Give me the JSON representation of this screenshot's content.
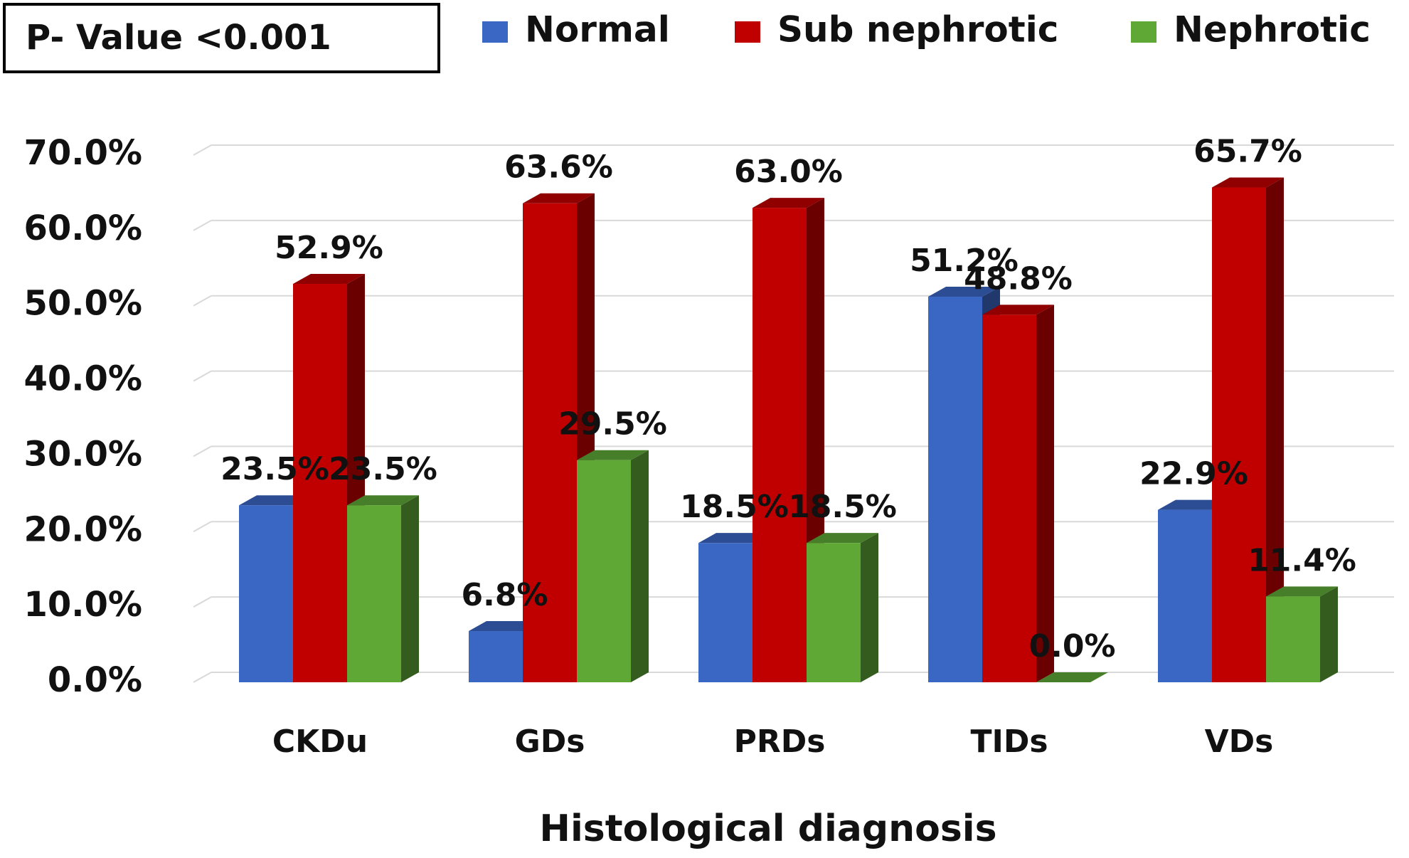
{
  "chart_data": {
    "type": "bar3d",
    "annotation": "P- Value <0.001",
    "x_label": "Histological diagnosis",
    "categories": [
      "CKDu",
      "GDs",
      "PRDs",
      "TIDs",
      "VDs"
    ],
    "series": [
      {
        "name": "Normal",
        "color": "#3a66c4",
        "values": [
          23.5,
          6.8,
          18.5,
          51.2,
          22.9
        ],
        "value_labels": [
          "23.5%",
          "6.8%",
          "18.5%",
          "51.2%",
          "22.9%"
        ]
      },
      {
        "name": "Sub nephrotic",
        "color": "#c00000",
        "values": [
          52.9,
          63.6,
          63.0,
          48.8,
          65.7
        ],
        "value_labels": [
          "52.9%",
          "63.6%",
          "63.0%",
          "48.8%",
          "65.7%"
        ]
      },
      {
        "name": "Nephrotic",
        "color": "#5fa836",
        "values": [
          23.5,
          29.5,
          18.5,
          0.0,
          11.4
        ],
        "value_labels": [
          "23.5%",
          "29.5%",
          "18.5%",
          "0.0%",
          "11.4%"
        ]
      }
    ],
    "ylim": [
      0,
      70
    ],
    "yticks": [
      {
        "value": 0,
        "label": "0.0%"
      },
      {
        "value": 10,
        "label": "10.0%"
      },
      {
        "value": 20,
        "label": "20.0%"
      },
      {
        "value": 30,
        "label": "30.0%"
      },
      {
        "value": 40,
        "label": "40.0%"
      },
      {
        "value": 50,
        "label": "50.0%"
      },
      {
        "value": 60,
        "label": "60.0%"
      },
      {
        "value": 70,
        "label": "70.0%"
      }
    ],
    "grid": true
  }
}
